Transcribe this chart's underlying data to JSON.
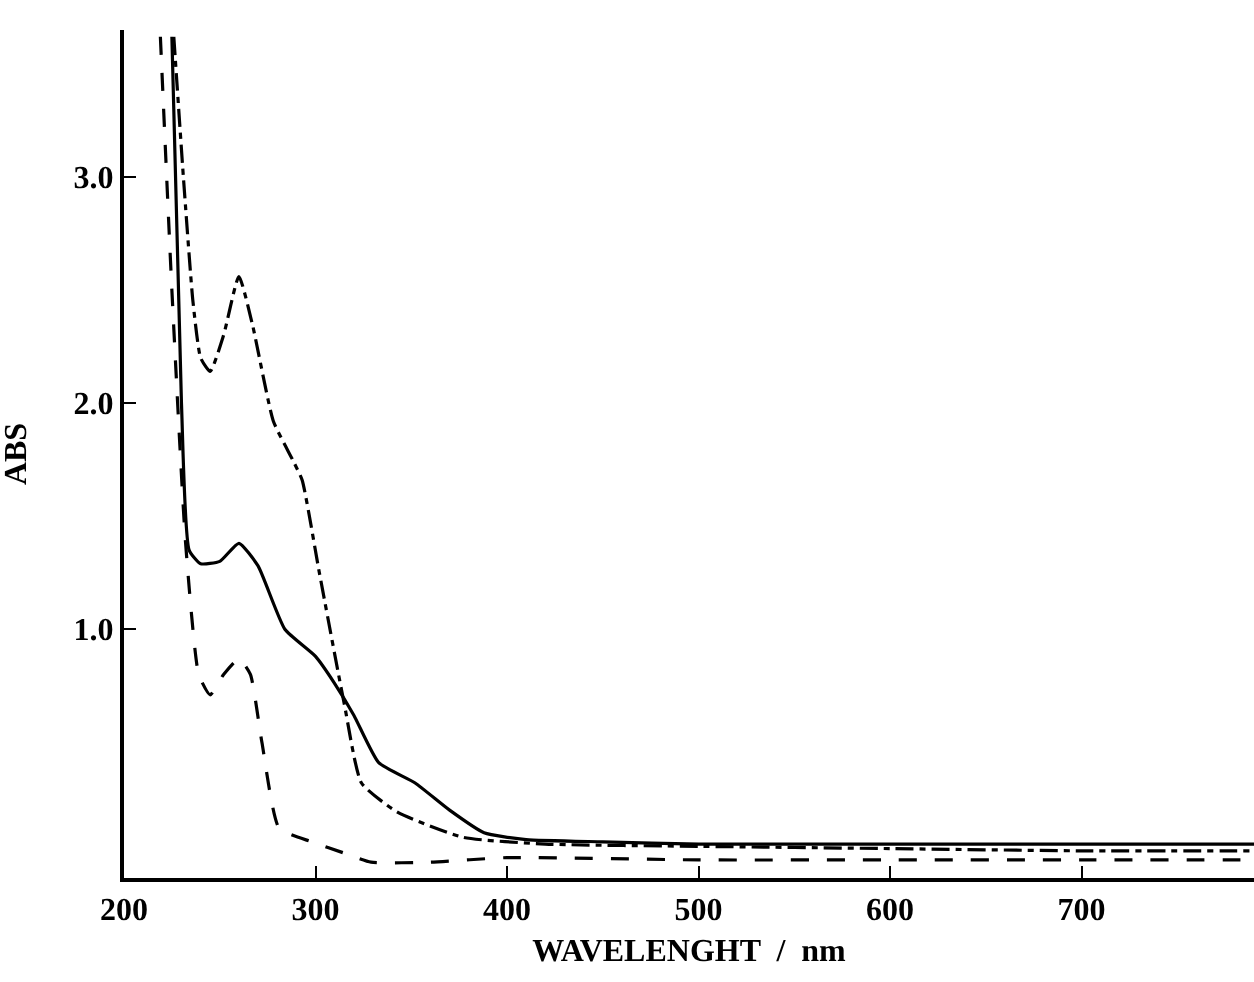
{
  "chart_data": {
    "type": "line",
    "xlabel": "WAVELENGHT  /  nm",
    "ylabel": "ABS",
    "xlim": [
      200,
      790
    ],
    "ylim": [
      -0.1,
      3.65
    ],
    "xticks": [
      200,
      300,
      400,
      500,
      600,
      700
    ],
    "yticks": [
      {
        "value": 1.0,
        "label": "1.0"
      },
      {
        "value": 2.0,
        "label": "2.0"
      },
      {
        "value": 3.0,
        "label": "3.0"
      }
    ],
    "marker": "none",
    "series": [
      {
        "color": "#000000",
        "line_style": "solid",
        "x": [
          225,
          230,
          234,
          240,
          250,
          260,
          270,
          284,
          300,
          310,
          320,
          333,
          352,
          370,
          388,
          410,
          450,
          500,
          600,
          700,
          790
        ],
        "values": [
          3.62,
          2.0,
          1.35,
          1.29,
          1.3,
          1.38,
          1.28,
          1.0,
          0.88,
          0.76,
          0.62,
          0.41,
          0.32,
          0.2,
          0.1,
          0.07,
          0.06,
          0.05,
          0.05,
          0.05,
          0.05
        ]
      },
      {
        "color": "#000000",
        "line_style": "dashed",
        "x": [
          219,
          225,
          232,
          239,
          245,
          252,
          260,
          266,
          272,
          281,
          298,
          315,
          329,
          360,
          400,
          500,
          600,
          700,
          790
        ],
        "values": [
          3.62,
          2.5,
          1.4,
          0.8,
          0.71,
          0.8,
          0.87,
          0.8,
          0.5,
          0.12,
          0.06,
          0.01,
          -0.03,
          -0.03,
          -0.01,
          -0.02,
          -0.02,
          -0.02,
          -0.02
        ]
      },
      {
        "color": "#000000",
        "line_style": "dashdot",
        "x": [
          226,
          231,
          236,
          240,
          245,
          252,
          260,
          267,
          278,
          288,
          293,
          302,
          315,
          324,
          343,
          377,
          420,
          500,
          600,
          700,
          790
        ],
        "values": [
          3.62,
          3.0,
          2.45,
          2.2,
          2.14,
          2.3,
          2.56,
          2.35,
          1.92,
          1.75,
          1.66,
          1.25,
          0.67,
          0.32,
          0.19,
          0.08,
          0.05,
          0.04,
          0.03,
          0.02,
          0.02
        ]
      }
    ]
  }
}
